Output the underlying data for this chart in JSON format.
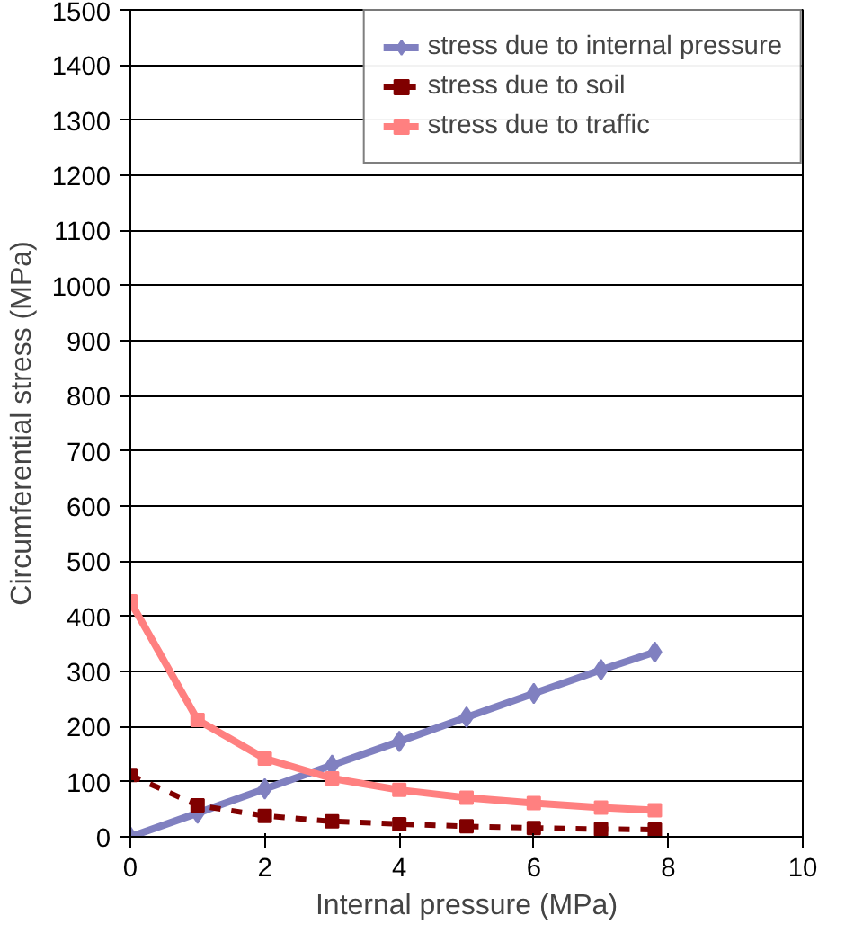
{
  "chart_data": {
    "type": "line",
    "xlabel": "Internal pressure (MPa)",
    "ylabel": "Circumferential stress (MPa)",
    "xlim": [
      0,
      10
    ],
    "xticks": [
      0,
      2,
      4,
      6,
      8,
      10
    ],
    "ylim": [
      0,
      1500
    ],
    "yticks": [
      0,
      100,
      200,
      300,
      400,
      500,
      600,
      700,
      800,
      900,
      1000,
      1100,
      1200,
      1300,
      1400,
      1500
    ],
    "grid": "y",
    "legend": "top right",
    "series": [
      {
        "name": "stress due to internal pressure",
        "color": "#8080c0",
        "marker": "diamond",
        "line_style": "solid",
        "x": [
          0,
          1,
          2,
          3,
          4,
          5,
          6,
          7,
          7.8
        ],
        "values": [
          0,
          43,
          87,
          130,
          173,
          217,
          260,
          303,
          335
        ]
      },
      {
        "name": "stress due to soil",
        "color": "#800000",
        "marker": "square",
        "line_style": "dashed",
        "x": [
          0,
          1,
          2,
          3,
          4,
          5,
          6,
          7,
          7.8
        ],
        "values": [
          112,
          57,
          38,
          28,
          23,
          19,
          16,
          14,
          13
        ]
      },
      {
        "name": "stress due to traffic",
        "color": "#ff8080",
        "marker": "square",
        "line_style": "solid",
        "x": [
          0,
          1,
          2,
          3,
          4,
          5,
          6,
          7,
          7.8
        ],
        "values": [
          427,
          212,
          142,
          106,
          85,
          71,
          61,
          53,
          48
        ]
      }
    ]
  }
}
